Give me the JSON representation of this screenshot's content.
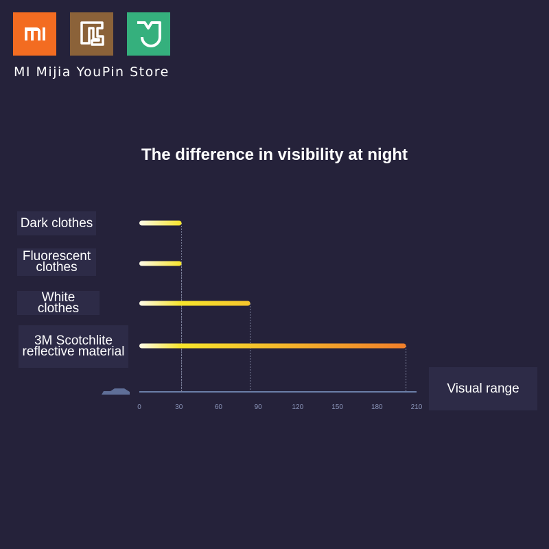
{
  "brand": {
    "store_name": "MI Mijia YouPin Store"
  },
  "chart_data": {
    "type": "bar",
    "orientation": "horizontal",
    "title": "The difference in visibility at night",
    "categories": [
      "Dark clothes",
      "Fluorescent clothes",
      "White clothes",
      "3M Scotchlite reflective material"
    ],
    "values": [
      32,
      32,
      84,
      202
    ],
    "xlim": [
      0,
      210
    ],
    "xticks": [
      0,
      30,
      60,
      90,
      120,
      150,
      180,
      210
    ],
    "x_label": "Visual range",
    "colors": [
      "#fffbe8",
      "#f7e52c",
      "#f07a2a"
    ]
  }
}
